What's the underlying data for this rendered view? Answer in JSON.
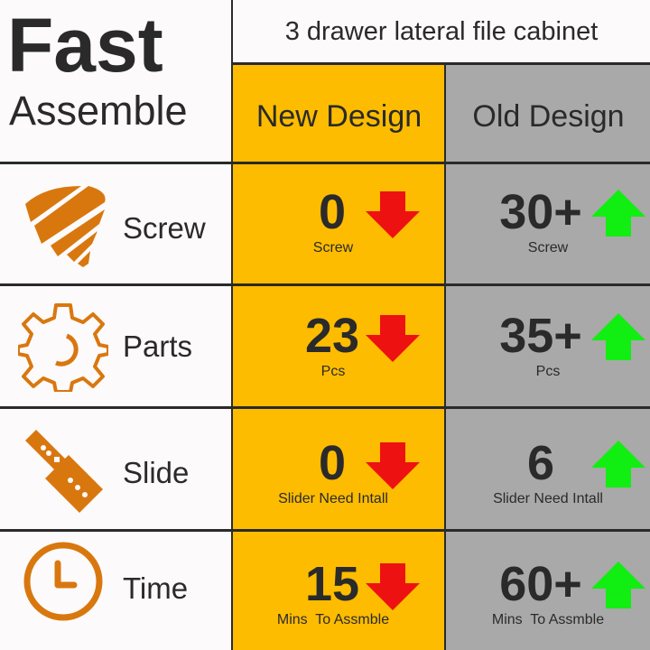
{
  "header": {
    "line1": "Fast",
    "line2": "Assemble",
    "title": "3 drawer lateral file cabinet",
    "new_label": "New Design",
    "old_label": "Old Design"
  },
  "colors": {
    "orange": "#d9770f",
    "new_bg": "#fdbc00",
    "old_bg": "#a9a9a9",
    "down_arrow": "#ee1111",
    "up_arrow": "#11ee11"
  },
  "rows": [
    {
      "label": "Screw",
      "icon": "screw-icon",
      "new_value": "0",
      "new_unit": "Screw",
      "old_value": "30+",
      "old_unit": "Screw"
    },
    {
      "label": "Parts",
      "icon": "gear-icon",
      "new_value": "23",
      "new_unit": "Pcs",
      "old_value": "35+",
      "old_unit": "Pcs"
    },
    {
      "label": "Slide",
      "icon": "slide-rail-icon",
      "new_value": "0",
      "new_unit": "Slider Need Intall",
      "old_value": "6",
      "old_unit": "Slider Need Intall"
    },
    {
      "label": "Time",
      "icon": "clock-icon",
      "new_value": "15",
      "new_unit": "Mins  To Assmble",
      "old_value": "60+",
      "old_unit": "Mins  To Assmble"
    }
  ]
}
